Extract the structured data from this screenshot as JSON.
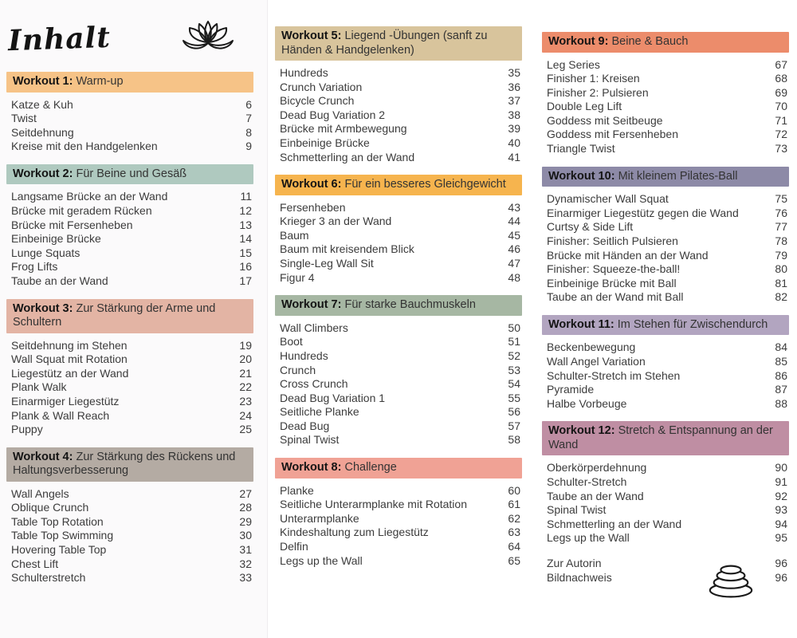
{
  "page": {
    "title": "Inhalt",
    "icons": {
      "top": "lotus-icon",
      "bottom": "stacked-stones-icon"
    }
  },
  "columns": [
    {
      "sections": [
        {
          "num": 1,
          "label": "Workout 1:",
          "subtitle": "Warm-up",
          "color": "#f6c387",
          "items": [
            {
              "label": "Katze & Kuh",
              "page": "6"
            },
            {
              "label": "Twist",
              "page": "7"
            },
            {
              "label": "Seitdehnung",
              "page": "8"
            },
            {
              "label": "Kreise mit den Handgelenken",
              "page": "9"
            }
          ]
        },
        {
          "num": 2,
          "label": "Workout 2:",
          "subtitle": "Für Beine und Gesäß",
          "color": "#afc9bf",
          "items": [
            {
              "label": "Langsame Brücke an der Wand",
              "page": "11"
            },
            {
              "label": "Brücke mit geradem Rücken",
              "page": "12"
            },
            {
              "label": "Brücke mit Fersenheben",
              "page": "13"
            },
            {
              "label": "Einbeinige Brücke",
              "page": "14"
            },
            {
              "label": "Lunge Squats",
              "page": "15"
            },
            {
              "label": "Frog Lifts",
              "page": "16"
            },
            {
              "label": "Taube an der Wand",
              "page": "17"
            }
          ]
        },
        {
          "num": 3,
          "label": "Workout 3:",
          "subtitle": "Zur Stärkung der Arme und Schultern",
          "color": "#e3b4a4",
          "items": [
            {
              "label": "Seitdehnung im Stehen",
              "page": "19"
            },
            {
              "label": "Wall Squat mit Rotation",
              "page": "20"
            },
            {
              "label": "Liegestütz an der Wand",
              "page": "21"
            },
            {
              "label": "Plank Walk",
              "page": "22"
            },
            {
              "label": "Einarmiger Liegestütz",
              "page": "23"
            },
            {
              "label": "Plank & Wall Reach",
              "page": "24"
            },
            {
              "label": "Puppy",
              "page": "25"
            }
          ]
        },
        {
          "num": 4,
          "label": "Workout 4:",
          "subtitle": "Zur Stärkung des Rückens und Haltungsverbesserung",
          "color": "#b4aba3",
          "items": [
            {
              "label": "Wall Angels",
              "page": "27"
            },
            {
              "label": "Oblique Crunch",
              "page": "28"
            },
            {
              "label": "Table Top Rotation",
              "page": "29"
            },
            {
              "label": "Table Top Swimming",
              "page": "30"
            },
            {
              "label": "Hovering Table Top",
              "page": "31"
            },
            {
              "label": "Chest Lift",
              "page": "32"
            },
            {
              "label": "Schulterstretch",
              "page": "33"
            }
          ]
        }
      ]
    },
    {
      "sections": [
        {
          "num": 5,
          "label": "Workout 5:",
          "subtitle": "Liegend -Übungen (sanft zu Händen & Handgelenken)",
          "color": "#d8c49c",
          "items": [
            {
              "label": "Hundreds",
              "page": "35"
            },
            {
              "label": "Crunch Variation",
              "page": "36"
            },
            {
              "label": "Bicycle Crunch",
              "page": "37"
            },
            {
              "label": "Dead Bug Variation 2",
              "page": "38"
            },
            {
              "label": "Brücke mit Armbewegung",
              "page": "39"
            },
            {
              "label": "Einbeinige Brücke",
              "page": "40"
            },
            {
              "label": "Schmetterling an der Wand",
              "page": "41"
            }
          ]
        },
        {
          "num": 6,
          "label": "Workout 6:",
          "subtitle": "Für ein besseres Gleichgewicht",
          "color": "#f6b44e",
          "items": [
            {
              "label": "Fersenheben",
              "page": "43"
            },
            {
              "label": "Krieger 3 an der Wand",
              "page": "44"
            },
            {
              "label": "Baum",
              "page": "45"
            },
            {
              "label": "Baum mit kreisendem Blick",
              "page": "46"
            },
            {
              "label": "Single-Leg Wall Sit",
              "page": "47"
            },
            {
              "label": "Figur 4",
              "page": "48"
            }
          ]
        },
        {
          "num": 7,
          "label": "Workout 7:",
          "subtitle": "Für starke Bauchmuskeln",
          "color": "#a6b7a3",
          "items": [
            {
              "label": "Wall Climbers",
              "page": "50"
            },
            {
              "label": "Boot",
              "page": "51"
            },
            {
              "label": "Hundreds",
              "page": "52"
            },
            {
              "label": "Crunch",
              "page": "53"
            },
            {
              "label": "Cross Crunch",
              "page": "54"
            },
            {
              "label": "Dead Bug Variation 1",
              "page": "55"
            },
            {
              "label": "Seitliche Planke",
              "page": "56"
            },
            {
              "label": "Dead Bug",
              "page": "57"
            },
            {
              "label": "Spinal Twist",
              "page": "58"
            }
          ]
        },
        {
          "num": 8,
          "label": "Workout 8:",
          "subtitle": "Challenge",
          "color": "#f0a295",
          "items": [
            {
              "label": "Planke",
              "page": "60"
            },
            {
              "label": "Seitliche Unterarmplanke mit Rotation",
              "page": "61"
            },
            {
              "label": "Unterarmplanke",
              "page": "62"
            },
            {
              "label": "Kindeshaltung zum Liegestütz",
              "page": "63"
            },
            {
              "label": "Delfin",
              "page": "64"
            },
            {
              "label": "Legs up the Wall",
              "page": "65"
            }
          ]
        }
      ]
    },
    {
      "sections": [
        {
          "num": 9,
          "label": "Workout 9:",
          "subtitle": "Beine & Bauch",
          "color": "#ec8c6b",
          "items": [
            {
              "label": "Leg Series",
              "page": "67"
            },
            {
              "label": "Finisher 1: Kreisen",
              "page": "68"
            },
            {
              "label": "Finisher 2: Pulsieren",
              "page": "69"
            },
            {
              "label": "Double Leg Lift",
              "page": "70"
            },
            {
              "label": "Goddess mit Seitbeuge",
              "page": "71"
            },
            {
              "label": "Goddess mit Fersenheben",
              "page": "72"
            },
            {
              "label": "Triangle Twist",
              "page": "73"
            }
          ]
        },
        {
          "num": 10,
          "label": "Workout 10:",
          "subtitle": "Mit kleinem Pilates-Ball",
          "color": "#8d8aa7",
          "items": [
            {
              "label": "Dynamischer Wall Squat",
              "page": "75"
            },
            {
              "label": "Einarmiger Liegestütz gegen die Wand",
              "page": "76"
            },
            {
              "label": "Curtsy & Side Lift",
              "page": "77"
            },
            {
              "label": "Finisher: Seitlich Pulsieren",
              "page": "78"
            },
            {
              "label": "Brücke mit Händen an der Wand",
              "page": "79"
            },
            {
              "label": "Finisher: Squeeze-the-ball!",
              "page": "80"
            },
            {
              "label": "Einbeinige Brücke mit Ball",
              "page": "81"
            },
            {
              "label": "Taube an der Wand mit Ball",
              "page": "82"
            }
          ]
        },
        {
          "num": 11,
          "label": "Workout 11:",
          "subtitle": "Im Stehen für Zwischendurch",
          "color": "#b2a5c0",
          "items": [
            {
              "label": "Beckenbewegung",
              "page": "84"
            },
            {
              "label": "Wall Angel Variation",
              "page": "85"
            },
            {
              "label": "Schulter-Stretch im Stehen",
              "page": "86"
            },
            {
              "label": "Pyramide",
              "page": "87"
            },
            {
              "label": "Halbe Vorbeuge",
              "page": "88"
            }
          ]
        },
        {
          "num": 12,
          "label": "Workout 12:",
          "subtitle": "Stretch & Entspannung an der Wand",
          "color": "#bf8ea3",
          "items": [
            {
              "label": "Oberkörperdehnung",
              "page": "90"
            },
            {
              "label": "Schulter-Stretch",
              "page": "91"
            },
            {
              "label": "Taube an der Wand",
              "page": "92"
            },
            {
              "label": "Spinal Twist",
              "page": "93"
            },
            {
              "label": "Schmetterling an der Wand",
              "page": "94"
            },
            {
              "label": "Legs up the Wall",
              "page": "95"
            }
          ]
        }
      ]
    }
  ],
  "extras": [
    {
      "label": "Zur Autorin",
      "page": "96"
    },
    {
      "label": "Bildnachweis",
      "page": "96"
    }
  ]
}
